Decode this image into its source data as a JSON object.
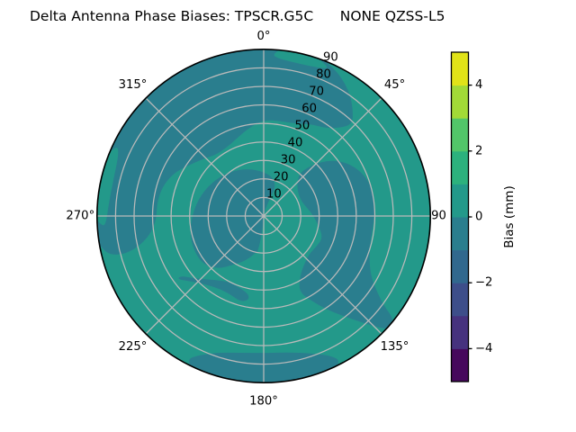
{
  "title": "Delta Antenna Phase Biases: TPSCR.G5C      NONE QZSS-L5",
  "colors": {
    "background": "#ffffff",
    "grid": "#bababa",
    "outline": "#000000",
    "band_teal_neg1_to_0": "#2a7e8e",
    "band_green_0_to_1": "#23998a"
  },
  "chart_data": {
    "type": "heatmap",
    "subtype": "polar-contourf-skyplot",
    "title": "Delta Antenna Phase Biases: TPSCR.G5C      NONE QZSS-L5",
    "grid_on": true,
    "r_max": 90,
    "grid_radii": [
      10,
      20,
      30,
      40,
      50,
      60,
      70,
      80
    ],
    "spoke_angles_deg": [
      0,
      45,
      90,
      135,
      180,
      225,
      270,
      315
    ],
    "r_tick_values": [
      10,
      20,
      30,
      40,
      50,
      60,
      70,
      80,
      90
    ],
    "r_tick_angle_deg": 22.5,
    "theta_labels": [
      {
        "angle_deg": 0,
        "label": "0°",
        "label_radius": 97
      },
      {
        "angle_deg": 45,
        "label": "45°",
        "label_radius": 100
      },
      {
        "angle_deg": 90,
        "label": "90",
        "label_radius": 94.5
      },
      {
        "angle_deg": 135,
        "label": "135°",
        "label_radius": 100
      },
      {
        "angle_deg": 180,
        "label": "180°",
        "label_radius": 100
      },
      {
        "angle_deg": 225,
        "label": "225°",
        "label_radius": 100
      },
      {
        "angle_deg": 270,
        "label": "270°",
        "label_radius": 99
      },
      {
        "angle_deg": 315,
        "label": "315°",
        "label_radius": 100
      }
    ],
    "base_band": {
      "value_range_mm": "0 to 1",
      "color": "#23998a"
    },
    "regions": [
      {
        "name": "north-cap",
        "value_range_mm": "-1 to 0",
        "color": "#2a7e8e",
        "points": [
          [
            257,
            88
          ],
          [
            264,
            90
          ],
          [
            274,
            90
          ],
          [
            286,
            90
          ],
          [
            298,
            90
          ],
          [
            310,
            90
          ],
          [
            322,
            90
          ],
          [
            334,
            90
          ],
          [
            346,
            90
          ],
          [
            358,
            90
          ],
          [
            8,
            90
          ],
          [
            16,
            90
          ],
          [
            24,
            89
          ],
          [
            29,
            86
          ],
          [
            35,
            81
          ],
          [
            40,
            75
          ],
          [
            44,
            69
          ],
          [
            41,
            63
          ],
          [
            35,
            58
          ],
          [
            28,
            56
          ],
          [
            20,
            53
          ],
          [
            10,
            52
          ],
          [
            0,
            52
          ],
          [
            350,
            48
          ],
          [
            340,
            44
          ],
          [
            331,
            42
          ],
          [
            322,
            42
          ],
          [
            313,
            45
          ],
          [
            304,
            49
          ],
          [
            295,
            54
          ],
          [
            286,
            57
          ],
          [
            277,
            58
          ],
          [
            268,
            58
          ],
          [
            261,
            62
          ],
          [
            257,
            68
          ],
          [
            255,
            75
          ],
          [
            255,
            82
          ]
        ]
      },
      {
        "name": "center-comma",
        "value_range_mm": "-1 to 0",
        "color": "#2a7e8e",
        "points": [
          [
            192,
            20
          ],
          [
            200,
            25
          ],
          [
            210,
            30
          ],
          [
            221,
            38
          ],
          [
            232,
            42
          ],
          [
            244,
            42
          ],
          [
            256,
            41
          ],
          [
            268,
            39
          ],
          [
            280,
            37
          ],
          [
            292,
            35
          ],
          [
            304,
            33
          ],
          [
            316,
            31
          ],
          [
            328,
            29
          ],
          [
            340,
            27
          ],
          [
            352,
            25
          ],
          [
            4,
            23
          ],
          [
            14,
            21
          ],
          [
            22,
            17
          ],
          [
            20,
            11
          ],
          [
            16,
            5
          ],
          [
            5,
            1
          ],
          [
            182,
            2
          ],
          [
            186,
            9
          ],
          [
            188,
            15
          ],
          [
            190,
            20
          ]
        ]
      },
      {
        "name": "east-kidney",
        "value_range_mm": "-1 to 0",
        "color": "#2a7e8e",
        "points": [
          [
            40,
            31
          ],
          [
            44,
            39
          ],
          [
            50,
            47
          ],
          [
            58,
            54
          ],
          [
            68,
            59
          ],
          [
            79,
            61
          ],
          [
            90,
            60
          ],
          [
            101,
            59
          ],
          [
            111,
            61
          ],
          [
            119,
            66
          ],
          [
            124,
            74
          ],
          [
            127,
            82
          ],
          [
            128,
            88
          ],
          [
            131,
            90
          ],
          [
            134,
            87
          ],
          [
            137,
            79
          ],
          [
            141,
            70
          ],
          [
            146,
            61
          ],
          [
            151,
            52
          ],
          [
            155,
            45
          ],
          [
            149,
            38
          ],
          [
            140,
            34
          ],
          [
            130,
            32
          ],
          [
            120,
            33
          ],
          [
            110,
            34
          ],
          [
            100,
            30
          ],
          [
            90,
            27
          ],
          [
            80,
            24
          ],
          [
            70,
            22
          ],
          [
            59,
            22
          ],
          [
            49,
            24
          ],
          [
            43,
            27
          ]
        ]
      },
      {
        "name": "south-rim-band",
        "value_range_mm": "-1 to 0",
        "color": "#2a7e8e",
        "points": [
          [
            152,
            89
          ],
          [
            158,
            90
          ],
          [
            166,
            90
          ],
          [
            176,
            90
          ],
          [
            186,
            90
          ],
          [
            196,
            90
          ],
          [
            204,
            90
          ],
          [
            208,
            88
          ],
          [
            206,
            84
          ],
          [
            199,
            78
          ],
          [
            190,
            75
          ],
          [
            180,
            74
          ],
          [
            169,
            75
          ],
          [
            160,
            79
          ],
          [
            154,
            84
          ]
        ]
      },
      {
        "name": "southwest-arc-blob",
        "value_range_mm": "-1 to 0",
        "color": "#2a7e8e",
        "points": [
          [
            234,
            58
          ],
          [
            227,
            52
          ],
          [
            219,
            48
          ],
          [
            211,
            46
          ],
          [
            203,
            46
          ],
          [
            195,
            48
          ],
          [
            190,
            46
          ],
          [
            191,
            43
          ],
          [
            198,
            41
          ],
          [
            206,
            40
          ],
          [
            214,
            42
          ],
          [
            222,
            46
          ],
          [
            229,
            51
          ],
          [
            234,
            55
          ]
        ]
      },
      {
        "name": "north-rim-sliver",
        "value_range_mm": "0 to 1",
        "color": "#23998a",
        "points": [
          [
            3,
            87.5
          ],
          [
            8,
            90
          ],
          [
            15,
            90
          ],
          [
            21,
            89
          ],
          [
            24,
            87
          ],
          [
            19,
            85
          ],
          [
            11,
            84.5
          ],
          [
            5,
            85.5
          ]
        ]
      },
      {
        "name": "west-rim-sliver",
        "value_range_mm": "0 to 1",
        "color": "#23998a",
        "points": [
          [
            266,
            87
          ],
          [
            271,
            90
          ],
          [
            279,
            90
          ],
          [
            288,
            90
          ],
          [
            296,
            88
          ],
          [
            293,
            85
          ],
          [
            284,
            83.5
          ],
          [
            274,
            84
          ],
          [
            268,
            85
          ]
        ]
      }
    ],
    "colorbar": {
      "label": "Bias (mm)",
      "vmin": -5,
      "vmax": 5,
      "tick_values": [
        4,
        2,
        0,
        -2,
        -4
      ],
      "tick_labels": [
        "4",
        "2",
        "0",
        "−2",
        "−4"
      ],
      "level_step": 1,
      "segment_colors_bottom_to_top": [
        "#46085c",
        "#46327e",
        "#3d4e8a",
        "#31688e",
        "#2a7e8e",
        "#23998a",
        "#2cb17d",
        "#52c569",
        "#a2da37",
        "#e1e318"
      ]
    }
  }
}
